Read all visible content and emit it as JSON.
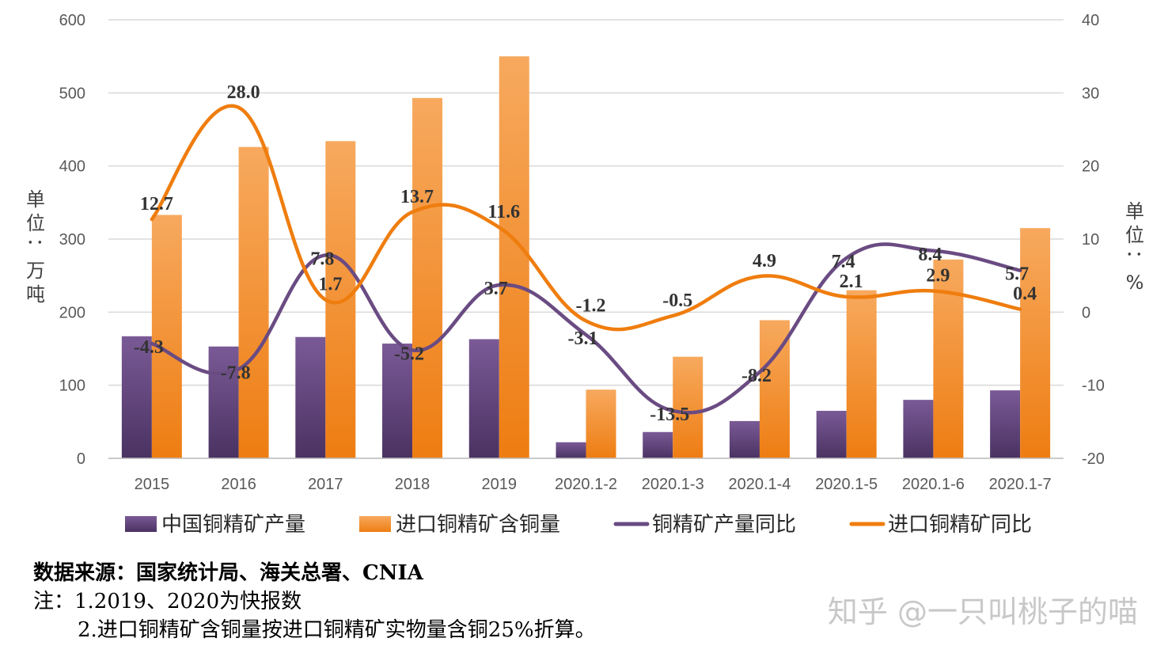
{
  "chart_data": {
    "type": "bar",
    "categories": [
      "2015",
      "2016",
      "2017",
      "2018",
      "2019",
      "2020.1-2",
      "2020.1-3",
      "2020.1-4",
      "2020.1-5",
      "2020.1-6",
      "2020.1-7"
    ],
    "y_left": {
      "label": "单位：万吨",
      "min": 0,
      "max": 600,
      "ticks": [
        0,
        100,
        200,
        300,
        400,
        500,
        600
      ]
    },
    "y_right": {
      "label": "单位：%",
      "min": -20,
      "max": 40,
      "ticks": [
        -20,
        -10,
        0,
        10,
        20,
        30,
        40
      ]
    },
    "grid": true,
    "legend_position": "bottom",
    "series": [
      {
        "name": "中国铜精矿产量",
        "kind": "bar",
        "axis": "left",
        "color": "#5b3f74",
        "values": [
          167,
          153,
          166,
          157,
          163,
          22,
          36,
          51,
          65,
          80,
          93
        ]
      },
      {
        "name": "进口铜精矿含铜量",
        "kind": "bar",
        "axis": "left",
        "color": "#f28a2a",
        "values": [
          333,
          426,
          434,
          493,
          550,
          94,
          139,
          189,
          230,
          272,
          315
        ]
      },
      {
        "name": "铜精矿产量同比",
        "kind": "line",
        "axis": "right",
        "color": "#6a4b82",
        "values": [
          -4.3,
          -7.8,
          7.8,
          -5.2,
          3.7,
          -3.1,
          -13.5,
          -8.2,
          7.4,
          8.4,
          5.7
        ],
        "labels": [
          "-4.3",
          "-7.8",
          "7.8",
          "-5.2",
          "3.7",
          "-3.1",
          "-13.5",
          "-8.2",
          "7.4",
          "8.4",
          "5.7"
        ]
      },
      {
        "name": "进口铜精矿同比",
        "kind": "line",
        "axis": "right",
        "color": "#ef7d0e",
        "values": [
          12.7,
          28.0,
          1.7,
          13.7,
          11.6,
          -1.2,
          -0.5,
          4.9,
          2.1,
          2.9,
          0.4
        ],
        "labels": [
          "12.7",
          "28.0",
          "1.7",
          "13.7",
          "11.6",
          "-1.2",
          "-0.5",
          "4.9",
          "2.1",
          "2.9",
          "0.4"
        ]
      }
    ]
  },
  "notes": {
    "source": "数据来源：国家统计局、海关总署、CNIA",
    "note1": "注：1.2019、2020为快报数",
    "note2": "2.进口铜精矿含铜量按进口铜精矿实物量含铜25%折算。"
  },
  "watermark": "知乎 @一只叫桃子的喵"
}
